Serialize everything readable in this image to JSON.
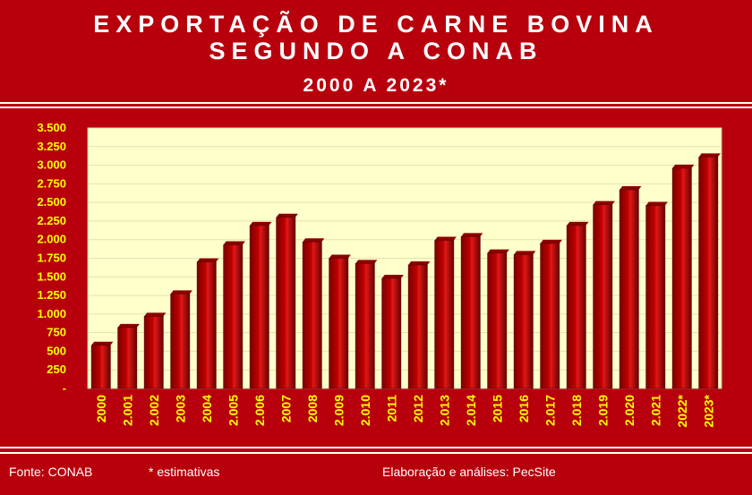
{
  "header": {
    "title_line1": "EXPORTAÇÃO DE CARNE BOVINA",
    "title_line2": "SEGUNDO A CONAB",
    "subtitle": "2000 A 2023*"
  },
  "footer": {
    "source": "Fonte: CONAB",
    "note": "* estimativas",
    "credit": "Elaboração e análises: PecSite"
  },
  "colors": {
    "background": "#b8000d",
    "plot_area": "#ffffcc",
    "bar": "#c00000",
    "tick_text": "#ffff00"
  },
  "chart_data": {
    "type": "bar",
    "title": "",
    "xlabel": "",
    "ylabel": "",
    "ylim": [
      0,
      3500
    ],
    "ytick_values": [
      0,
      250,
      500,
      750,
      1000,
      1250,
      1500,
      1750,
      2000,
      2250,
      2500,
      2750,
      3000,
      3250,
      3500
    ],
    "ytick_labels": [
      "-",
      "250",
      "500",
      "750",
      "1.000",
      "1.250",
      "1.500",
      "1.750",
      "2.000",
      "2.250",
      "2.500",
      "2.750",
      "3.000",
      "3.250",
      "3.500"
    ],
    "categories": [
      "2000",
      "2.001",
      "2.002",
      "2003",
      "2004",
      "2.005",
      "2.006",
      "2007",
      "2008",
      "2.009",
      "2.010",
      "2011",
      "2012",
      "2.013",
      "2.014",
      "2015",
      "2016",
      "2.017",
      "2.018",
      "2.019",
      "2.020",
      "2.021",
      "2022*",
      "2023*"
    ],
    "values": [
      580,
      820,
      970,
      1270,
      1700,
      1930,
      2190,
      2300,
      1970,
      1750,
      1680,
      1480,
      1660,
      1990,
      2040,
      1820,
      1800,
      1950,
      2190,
      2470,
      2670,
      2460,
      2960,
      3110
    ],
    "grid": true,
    "legend": "none"
  }
}
